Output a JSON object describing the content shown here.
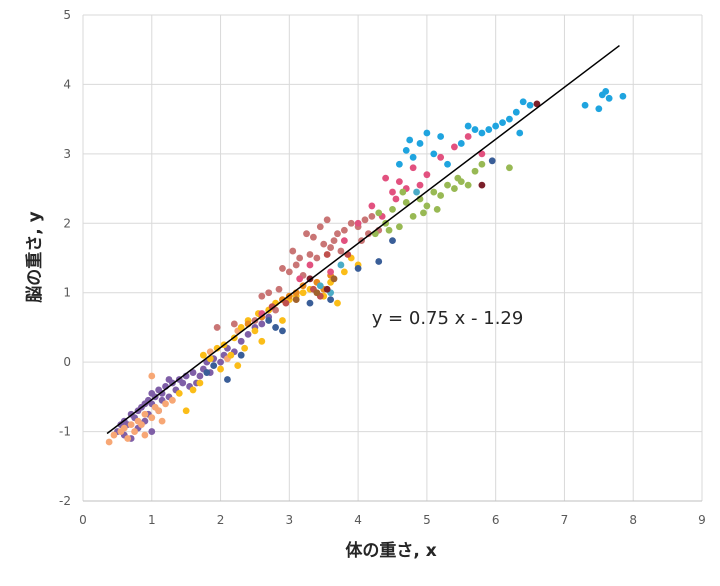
{
  "chart_data": {
    "type": "scatter",
    "xlabel": "体の重さ, x",
    "ylabel": "脳の重さ, y",
    "xlim": [
      0,
      9
    ],
    "ylim": [
      -2,
      5
    ],
    "xticks": [
      "0",
      "1",
      "2",
      "3",
      "4",
      "5",
      "6",
      "7",
      "8",
      "9"
    ],
    "yticks": [
      "-2",
      "-1",
      "0",
      "1",
      "2",
      "3",
      "4",
      "5"
    ],
    "grid": true,
    "legend": "none",
    "trendline": {
      "slope": 0.75,
      "intercept": -1.29,
      "x_range": [
        0.35,
        7.8
      ],
      "color": "#000000"
    },
    "annotation": "y = 0.75 x - 1.29",
    "annotation_at": {
      "x": 5.3,
      "y": 0.55
    },
    "palette": {
      "purple": "#7f5fa7",
      "peach": "#f7a775",
      "gold": "#fbbd18",
      "orange": "#e98a1e",
      "red_brown": "#c0504d",
      "rose": "#c97575",
      "pink": "#e2517f",
      "green": "#98b954",
      "blue": "#1fa4df",
      "navy": "#3a5e98",
      "teal": "#4bacc6",
      "dark_red": "#7b1f2a",
      "brown": "#a0622d"
    },
    "series": [
      {
        "color": "#7f5fa7",
        "points": [
          [
            0.5,
            -1.0
          ],
          [
            0.6,
            -0.85
          ],
          [
            0.65,
            -0.9
          ],
          [
            0.7,
            -0.75
          ],
          [
            0.75,
            -0.8
          ],
          [
            0.8,
            -0.7
          ],
          [
            0.8,
            -0.95
          ],
          [
            0.85,
            -0.65
          ],
          [
            0.9,
            -0.6
          ],
          [
            0.9,
            -0.85
          ],
          [
            0.95,
            -0.55
          ],
          [
            1.0,
            -0.6
          ],
          [
            1.0,
            -0.45
          ],
          [
            1.05,
            -0.5
          ],
          [
            1.1,
            -0.4
          ],
          [
            1.1,
            -0.7
          ],
          [
            1.15,
            -0.45
          ],
          [
            1.2,
            -0.35
          ],
          [
            1.25,
            -0.5
          ],
          [
            1.3,
            -0.3
          ],
          [
            1.35,
            -0.4
          ],
          [
            1.4,
            -0.25
          ],
          [
            1.45,
            -0.3
          ],
          [
            1.5,
            -0.2
          ],
          [
            1.55,
            -0.35
          ],
          [
            1.6,
            -0.15
          ],
          [
            1.7,
            -0.2
          ],
          [
            1.75,
            -0.1
          ],
          [
            1.8,
            0.0
          ],
          [
            1.85,
            -0.15
          ],
          [
            1.9,
            0.05
          ],
          [
            2.0,
            0.0
          ],
          [
            2.05,
            0.1
          ],
          [
            2.1,
            0.2
          ],
          [
            2.2,
            0.15
          ],
          [
            2.3,
            0.3
          ],
          [
            2.4,
            0.4
          ],
          [
            2.5,
            0.5
          ],
          [
            2.6,
            0.55
          ],
          [
            2.7,
            0.65
          ],
          [
            0.7,
            -1.1
          ],
          [
            0.6,
            -1.05
          ],
          [
            1.0,
            -1.0
          ],
          [
            1.15,
            -0.55
          ],
          [
            1.25,
            -0.25
          ],
          [
            1.65,
            -0.3
          ],
          [
            0.95,
            -0.75
          ],
          [
            0.55,
            -0.9
          ]
        ]
      },
      {
        "color": "#f7a775",
        "points": [
          [
            0.38,
            -1.15
          ],
          [
            0.45,
            -1.05
          ],
          [
            0.55,
            -1.0
          ],
          [
            0.6,
            -0.95
          ],
          [
            0.7,
            -0.9
          ],
          [
            0.75,
            -1.0
          ],
          [
            0.8,
            -0.85
          ],
          [
            0.85,
            -0.9
          ],
          [
            0.9,
            -0.75
          ],
          [
            1.0,
            -0.8
          ],
          [
            1.05,
            -0.65
          ],
          [
            1.1,
            -0.7
          ],
          [
            1.2,
            -0.6
          ],
          [
            1.3,
            -0.55
          ],
          [
            1.0,
            -0.2
          ],
          [
            1.85,
            0.15
          ],
          [
            2.1,
            0.05
          ],
          [
            2.25,
            0.45
          ],
          [
            0.65,
            -1.1
          ],
          [
            0.9,
            -1.05
          ],
          [
            1.15,
            -0.85
          ]
        ]
      },
      {
        "color": "#fbbd18",
        "points": [
          [
            1.4,
            -0.45
          ],
          [
            1.5,
            -0.7
          ],
          [
            1.6,
            -0.4
          ],
          [
            1.75,
            0.1
          ],
          [
            1.85,
            0.05
          ],
          [
            1.95,
            0.2
          ],
          [
            2.05,
            0.25
          ],
          [
            2.15,
            0.1
          ],
          [
            2.2,
            0.35
          ],
          [
            2.3,
            0.5
          ],
          [
            2.35,
            0.2
          ],
          [
            2.4,
            0.6
          ],
          [
            2.5,
            0.45
          ],
          [
            2.55,
            0.7
          ],
          [
            2.6,
            0.3
          ],
          [
            2.7,
            0.75
          ],
          [
            2.8,
            0.85
          ],
          [
            2.9,
            0.6
          ],
          [
            3.0,
            0.9
          ],
          [
            3.1,
            0.95
          ],
          [
            3.2,
            1.0
          ],
          [
            3.3,
            1.05
          ],
          [
            3.5,
            0.95
          ],
          [
            3.6,
            1.15
          ],
          [
            3.8,
            1.3
          ],
          [
            4.0,
            1.4
          ],
          [
            3.9,
            1.5
          ],
          [
            3.7,
            0.85
          ],
          [
            2.0,
            -0.1
          ],
          [
            2.25,
            -0.05
          ],
          [
            1.7,
            -0.3
          ]
        ]
      },
      {
        "color": "#e98a1e",
        "points": [
          [
            2.4,
            0.55
          ],
          [
            2.6,
            0.65
          ],
          [
            3.0,
            0.95
          ],
          [
            3.2,
            1.1
          ],
          [
            3.4,
            1.15
          ],
          [
            3.5,
            1.05
          ],
          [
            3.6,
            1.25
          ],
          [
            3.1,
            1.0
          ],
          [
            2.9,
            0.9
          ]
        ]
      },
      {
        "color": "#c97575",
        "points": [
          [
            1.95,
            0.5
          ],
          [
            2.2,
            0.55
          ],
          [
            2.5,
            0.6
          ],
          [
            2.7,
            1.0
          ],
          [
            2.8,
            0.75
          ],
          [
            2.9,
            1.35
          ],
          [
            3.0,
            1.3
          ],
          [
            3.1,
            1.4
          ],
          [
            3.2,
            1.25
          ],
          [
            3.3,
            1.55
          ],
          [
            3.4,
            1.5
          ],
          [
            3.5,
            1.7
          ],
          [
            3.6,
            1.65
          ],
          [
            3.7,
            1.85
          ],
          [
            3.8,
            1.9
          ],
          [
            3.9,
            2.0
          ],
          [
            4.0,
            1.95
          ],
          [
            4.1,
            2.05
          ],
          [
            4.2,
            2.1
          ],
          [
            4.3,
            1.9
          ],
          [
            3.25,
            1.85
          ],
          [
            3.35,
            1.8
          ],
          [
            3.45,
            1.95
          ],
          [
            3.55,
            2.05
          ],
          [
            3.65,
            1.75
          ],
          [
            2.85,
            1.05
          ],
          [
            2.6,
            0.95
          ],
          [
            3.05,
            1.6
          ],
          [
            3.15,
            1.5
          ],
          [
            4.05,
            1.75
          ],
          [
            3.75,
            1.6
          ],
          [
            4.15,
            1.85
          ]
        ]
      },
      {
        "color": "#c0504d",
        "points": [
          [
            2.75,
            0.8
          ],
          [
            2.95,
            0.85
          ],
          [
            3.35,
            1.05
          ],
          [
            3.45,
            0.95
          ],
          [
            3.55,
            1.55
          ],
          [
            3.85,
            1.55
          ]
        ]
      },
      {
        "color": "#e2517f",
        "points": [
          [
            2.6,
            0.7
          ],
          [
            3.15,
            1.2
          ],
          [
            3.3,
            1.4
          ],
          [
            3.6,
            1.3
          ],
          [
            3.8,
            1.75
          ],
          [
            4.0,
            2.0
          ],
          [
            4.2,
            2.25
          ],
          [
            4.35,
            2.1
          ],
          [
            4.5,
            2.45
          ],
          [
            4.6,
            2.6
          ],
          [
            4.7,
            2.5
          ],
          [
            4.8,
            2.8
          ],
          [
            4.9,
            2.55
          ],
          [
            5.0,
            2.7
          ],
          [
            5.2,
            2.95
          ],
          [
            5.4,
            3.1
          ],
          [
            5.6,
            3.25
          ],
          [
            5.8,
            3.0
          ],
          [
            4.4,
            2.65
          ],
          [
            4.55,
            2.35
          ]
        ]
      },
      {
        "color": "#98b954",
        "points": [
          [
            4.3,
            2.15
          ],
          [
            4.4,
            2.0
          ],
          [
            4.5,
            2.2
          ],
          [
            4.6,
            1.95
          ],
          [
            4.7,
            2.3
          ],
          [
            4.8,
            2.1
          ],
          [
            4.9,
            2.35
          ],
          [
            5.0,
            2.25
          ],
          [
            5.1,
            2.45
          ],
          [
            5.2,
            2.4
          ],
          [
            5.3,
            2.55
          ],
          [
            5.4,
            2.5
          ],
          [
            5.5,
            2.6
          ],
          [
            5.6,
            2.55
          ],
          [
            5.7,
            2.75
          ],
          [
            5.8,
            2.85
          ],
          [
            6.2,
            2.8
          ],
          [
            4.65,
            2.45
          ],
          [
            4.95,
            2.15
          ],
          [
            5.15,
            2.2
          ],
          [
            5.45,
            2.65
          ],
          [
            4.25,
            1.85
          ],
          [
            4.45,
            1.9
          ]
        ]
      },
      {
        "color": "#1fa4df",
        "points": [
          [
            4.6,
            2.85
          ],
          [
            4.7,
            3.05
          ],
          [
            4.8,
            2.95
          ],
          [
            4.9,
            3.15
          ],
          [
            5.0,
            3.3
          ],
          [
            5.1,
            3.0
          ],
          [
            5.2,
            3.25
          ],
          [
            5.3,
            2.85
          ],
          [
            5.5,
            3.15
          ],
          [
            5.6,
            3.4
          ],
          [
            5.7,
            3.35
          ],
          [
            5.8,
            3.3
          ],
          [
            5.9,
            3.35
          ],
          [
            6.0,
            3.4
          ],
          [
            6.1,
            3.45
          ],
          [
            6.2,
            3.5
          ],
          [
            6.3,
            3.6
          ],
          [
            6.4,
            3.75
          ],
          [
            6.5,
            3.7
          ],
          [
            7.3,
            3.7
          ],
          [
            7.5,
            3.65
          ],
          [
            7.55,
            3.85
          ],
          [
            7.6,
            3.9
          ],
          [
            7.65,
            3.8
          ],
          [
            7.85,
            3.83
          ],
          [
            6.35,
            3.3
          ],
          [
            4.75,
            3.2
          ]
        ]
      },
      {
        "color": "#3a5e98",
        "points": [
          [
            1.8,
            -0.15
          ],
          [
            1.9,
            -0.05
          ],
          [
            2.1,
            -0.25
          ],
          [
            2.3,
            0.1
          ],
          [
            2.7,
            0.6
          ],
          [
            2.8,
            0.5
          ],
          [
            2.9,
            0.45
          ],
          [
            3.3,
            0.85
          ],
          [
            3.6,
            0.9
          ],
          [
            4.0,
            1.35
          ],
          [
            4.3,
            1.45
          ],
          [
            4.5,
            1.75
          ],
          [
            5.95,
            2.9
          ]
        ]
      },
      {
        "color": "#4bacc6",
        "points": [
          [
            3.45,
            1.1
          ],
          [
            3.6,
            1.0
          ],
          [
            3.75,
            1.4
          ],
          [
            4.85,
            2.45
          ]
        ]
      },
      {
        "color": "#7b1f2a",
        "points": [
          [
            3.3,
            1.2
          ],
          [
            5.8,
            2.55
          ],
          [
            6.6,
            3.72
          ],
          [
            3.55,
            1.05
          ]
        ]
      },
      {
        "color": "#a0622d",
        "points": [
          [
            3.1,
            0.9
          ],
          [
            3.4,
            1.0
          ],
          [
            3.65,
            1.2
          ]
        ]
      }
    ]
  }
}
